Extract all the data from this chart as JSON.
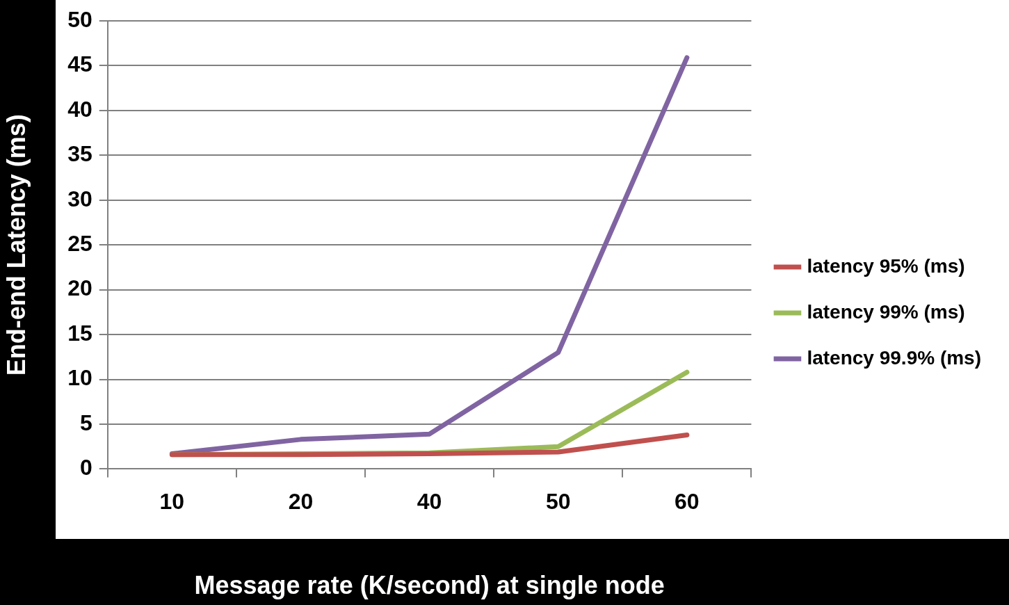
{
  "chart_data": {
    "type": "line",
    "xlabel": "Message rate (K/second) at single node",
    "ylabel": "End-end Latency (ms)",
    "categories": [
      "10",
      "20",
      "40",
      "50",
      "60"
    ],
    "series": [
      {
        "name": "latency 95% (ms)",
        "color": "#c0504d",
        "values": [
          1.6,
          1.6,
          1.7,
          1.9,
          3.8
        ]
      },
      {
        "name": "latency 99% (ms)",
        "color": "#9bbb59",
        "values": [
          1.6,
          1.7,
          1.8,
          2.5,
          10.8
        ]
      },
      {
        "name": "latency 99.9% (ms)",
        "color": "#8064a2",
        "values": [
          1.7,
          3.3,
          3.9,
          13,
          45.9
        ]
      }
    ],
    "ylim": [
      0,
      50
    ],
    "yticks": [
      0,
      5,
      10,
      15,
      20,
      25,
      30,
      35,
      40,
      45,
      50
    ],
    "grid": "y",
    "legend": "right",
    "marker": "none",
    "line_style": "solid"
  }
}
